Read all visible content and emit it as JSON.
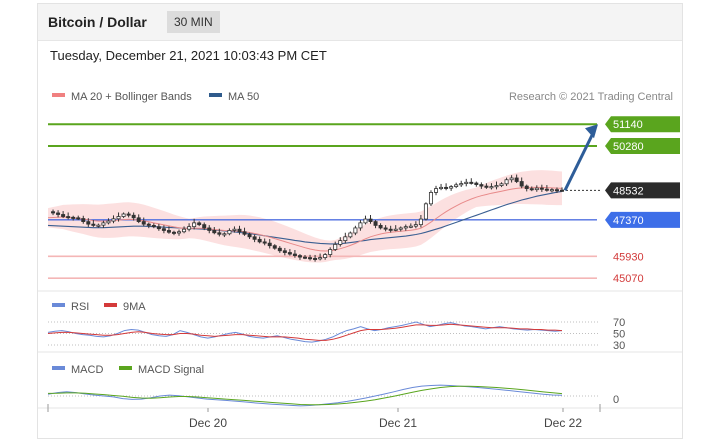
{
  "header": {
    "title": "Bitcoin / Dollar",
    "timeframe": "30 MIN"
  },
  "datetime": "Tuesday, December 21, 2021 10:03:43 PM CET",
  "main_legend": {
    "items": [
      {
        "label": "MA 20 + Bollinger Bands",
        "color": "#f08080"
      },
      {
        "label": "MA 50",
        "color": "#2f5b8c"
      }
    ],
    "copyright": "Research © 2021 Trading Central"
  },
  "colors": {
    "green": "#5aa51e",
    "blue": "#4f6fe0",
    "red": "#e67474",
    "candle": "#333333",
    "arrow": "#2e5d99",
    "band": "#fbd6d6",
    "rsi": "#6a8ad8",
    "ma9": "#d43a3a",
    "macd": "#6a8ad8",
    "signal": "#5aa51e"
  },
  "price_levels": [
    {
      "value": 51140,
      "label": "51140",
      "style": "green-line",
      "tag": "green"
    },
    {
      "value": 50280,
      "label": "50280",
      "style": "green-line",
      "tag": "green"
    },
    {
      "value": 48532,
      "label": "48532",
      "style": "current",
      "tag": "dark"
    },
    {
      "value": 47370,
      "label": "47370",
      "style": "blue-line",
      "tag": "blue"
    },
    {
      "value": 45930,
      "label": "45930",
      "style": "red-line",
      "tag": "text"
    },
    {
      "value": 45070,
      "label": "45070",
      "style": "red-line",
      "tag": "text"
    }
  ],
  "rsi_panel": {
    "legend": [
      {
        "label": "RSI",
        "color": "#6a8ad8"
      },
      {
        "label": "9MA",
        "color": "#d43a3a"
      }
    ],
    "levels": [
      "70",
      "50",
      "30"
    ]
  },
  "macd_panel": {
    "legend": [
      {
        "label": "MACD",
        "color": "#6a8ad8"
      },
      {
        "label": "MACD Signal",
        "color": "#5aa51e"
      }
    ],
    "levels": [
      "0"
    ]
  },
  "x_axis": {
    "ticks": [
      "Dec 20",
      "Dec 21",
      "Dec 22"
    ]
  },
  "chart_data": {
    "type": "line",
    "title": "Bitcoin / Dollar",
    "y_range": [
      44800,
      51700
    ],
    "price_series": [
      47690,
      47640,
      47580,
      47500,
      47470,
      47450,
      47420,
      47300,
      47200,
      47150,
      47160,
      47250,
      47320,
      47410,
      47500,
      47600,
      47550,
      47450,
      47300,
      47200,
      47150,
      47100,
      47020,
      46950,
      46880,
      46850,
      46900,
      47000,
      47100,
      47250,
      47180,
      47050,
      46950,
      46860,
      46800,
      46820,
      46950,
      47000,
      46900,
      46800,
      46700,
      46600,
      46500,
      46450,
      46350,
      46250,
      46150,
      46080,
      46020,
      45960,
      45900,
      45880,
      45850,
      45830,
      45880,
      46000,
      46200,
      46400,
      46550,
      46700,
      46850,
      47050,
      47250,
      47400,
      47300,
      47150,
      47050,
      47000,
      46980,
      47000,
      47050,
      47100,
      47120,
      47180,
      47400,
      48000,
      48450,
      48600,
      48650,
      48620,
      48680,
      48750,
      48800,
      48850,
      48820,
      48760,
      48700,
      48650,
      48680,
      48720,
      48790,
      48950,
      49020,
      48880,
      48700,
      48600,
      48560,
      48620,
      48580,
      48540,
      48560,
      48540,
      48532
    ],
    "ma20_series": [
      47450,
      47460,
      47470,
      47480,
      47460,
      47440,
      47420,
      47400,
      47370,
      47340,
      47320,
      47320,
      47330,
      47340,
      47360,
      47380,
      47390,
      47380,
      47360,
      47330,
      47290,
      47250,
      47210,
      47170,
      47130,
      47090,
      47060,
      47040,
      47030,
      47040,
      47040,
      47030,
      47010,
      46990,
      46970,
      46950,
      46940,
      46930,
      46920,
      46900,
      46870,
      46830,
      46790,
      46740,
      46690,
      46630,
      46570,
      46510,
      46450,
      46390,
      46330,
      46270,
      46220,
      46180,
      46150,
      46140,
      46150,
      46180,
      46230,
      46290,
      46360,
      46440,
      46530,
      46620,
      46700,
      46760,
      46810,
      46850,
      46880,
      46900,
      46920,
      46940,
      46960,
      46990,
      47040,
      47150,
      47280,
      47420,
      47560,
      47690,
      47810,
      47920,
      48020,
      48110,
      48190,
      48260,
      48320,
      48370,
      48420,
      48460,
      48500,
      48540,
      48580,
      48610,
      48630,
      48640,
      48650,
      48650,
      48650,
      48640,
      48630,
      48620,
      48610
    ],
    "ma50_series": [
      47150,
      47140,
      47130,
      47120,
      47110,
      47100,
      47090,
      47080,
      47070,
      47060,
      47060,
      47060,
      47070,
      47080,
      47090,
      47100,
      47110,
      47120,
      47120,
      47120,
      47110,
      47100,
      47090,
      47080,
      47070,
      47060,
      47050,
      47040,
      47030,
      47020,
      47010,
      47000,
      46990,
      46970,
      46950,
      46930,
      46910,
      46890,
      46870,
      46850,
      46830,
      46800,
      46770,
      46740,
      46710,
      46680,
      46650,
      46620,
      46590,
      46560,
      46530,
      46500,
      46480,
      46460,
      46440,
      46430,
      46420,
      46420,
      46430,
      46450,
      46470,
      46500,
      46530,
      46560,
      46590,
      46610,
      46630,
      46650,
      46670,
      46690,
      46710,
      46730,
      46760,
      46790,
      46830,
      46880,
      46940,
      47000,
      47060,
      47130,
      47200,
      47270,
      47340,
      47410,
      47480,
      47550,
      47620,
      47690,
      47760,
      47830,
      47900,
      47970,
      48030,
      48090,
      48150,
      48200,
      48250,
      48300,
      48340,
      48380,
      48420,
      48460,
      48490
    ],
    "rsi_series": [
      52,
      54,
      55,
      53,
      50,
      48,
      47,
      45,
      44,
      46,
      50,
      55,
      57,
      56,
      52,
      48,
      46,
      45,
      48,
      55,
      52,
      48,
      44,
      42,
      44,
      47,
      50,
      52,
      49,
      45,
      43,
      42,
      44,
      46,
      43,
      40,
      38,
      36,
      35,
      37,
      40,
      44,
      50,
      55,
      58,
      62,
      58,
      55,
      57,
      60,
      62,
      64,
      67,
      70,
      66,
      62,
      64,
      67,
      69,
      66,
      63,
      62,
      60,
      58,
      60,
      62,
      60,
      58,
      57,
      56,
      57,
      56,
      55,
      54,
      55
    ],
    "ma9_series": [
      50,
      51,
      52,
      52,
      51,
      50,
      49,
      48,
      47,
      47,
      48,
      50,
      52,
      53,
      52,
      50,
      49,
      48,
      48,
      50,
      50,
      49,
      47,
      46,
      45,
      46,
      47,
      48,
      48,
      47,
      46,
      45,
      44,
      44,
      44,
      43,
      42,
      40,
      39,
      38,
      38,
      40,
      43,
      47,
      51,
      55,
      57,
      57,
      57,
      58,
      59,
      61,
      63,
      65,
      65,
      64,
      64,
      65,
      66,
      65,
      64,
      63,
      62,
      61,
      60,
      60,
      60,
      59,
      58,
      58,
      57,
      57,
      56,
      56,
      55
    ],
    "macd_series": [
      10,
      20,
      25,
      20,
      12,
      5,
      0,
      -5,
      -15,
      -20,
      -18,
      -10,
      0,
      5,
      2,
      -5,
      -12,
      -18,
      -22,
      -26,
      -30,
      -35,
      -40,
      -44,
      -48,
      -52,
      -55,
      -58,
      -56,
      -52,
      -46,
      -40,
      -32,
      -22,
      -12,
      0,
      12,
      25,
      38,
      50,
      58,
      62,
      64,
      62,
      58,
      54,
      50,
      45,
      40,
      34,
      28,
      22,
      16,
      10,
      6,
      4
    ],
    "macd_signal_series": [
      15,
      16,
      18,
      18,
      16,
      12,
      8,
      3,
      -2,
      -8,
      -12,
      -13,
      -10,
      -6,
      -3,
      -3,
      -6,
      -10,
      -14,
      -18,
      -22,
      -26,
      -30,
      -34,
      -38,
      -42,
      -46,
      -50,
      -52,
      -52,
      -50,
      -47,
      -43,
      -37,
      -30,
      -22,
      -12,
      -2,
      10,
      22,
      33,
      42,
      50,
      55,
      57,
      57,
      56,
      53,
      50,
      46,
      41,
      36,
      30,
      24,
      19,
      14
    ],
    "xlabel": "",
    "ylabel": ""
  }
}
